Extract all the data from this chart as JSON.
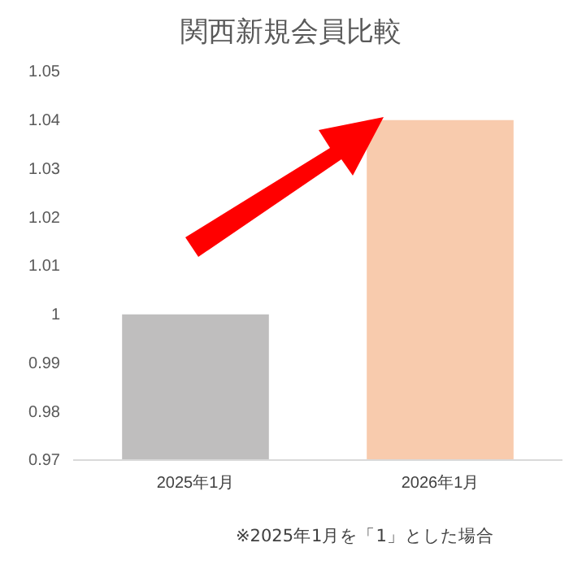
{
  "chart_data": {
    "type": "bar",
    "title": "関西新規会員比較",
    "categories": [
      "2025年1月",
      "2026年1月"
    ],
    "values": [
      1,
      1.04
    ],
    "colors": [
      "#bfbebe",
      "#f8cbad"
    ],
    "ylim": [
      0.97,
      1.05
    ],
    "yticks": [
      {
        "value": 0.97,
        "label": "0.97"
      },
      {
        "value": 0.98,
        "label": "0.98"
      },
      {
        "value": 0.99,
        "label": "0.99"
      },
      {
        "value": 1,
        "label": "1"
      },
      {
        "value": 1.01,
        "label": "1.01"
      },
      {
        "value": 1.02,
        "label": "1.02"
      },
      {
        "value": 1.03,
        "label": "1.03"
      },
      {
        "value": 1.04,
        "label": "1.04"
      },
      {
        "value": 1.05,
        "label": "1.05"
      }
    ],
    "grid": false,
    "annotations": [
      "※2025年1月を「1」とした場合"
    ]
  }
}
